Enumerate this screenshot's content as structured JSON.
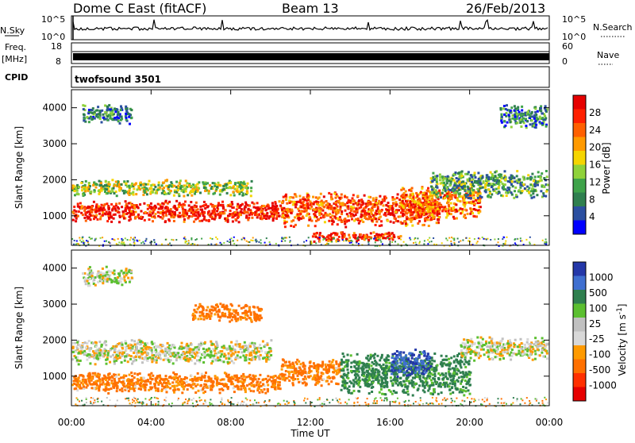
{
  "header": {
    "station": "Dome C East (fitACF)",
    "beam": "Beam 13",
    "date": "26/Feb/2013"
  },
  "top_panels": {
    "nsky_label": "N.Sky",
    "nsky_ticks": [
      "10^5",
      "10^0"
    ],
    "nsearch_label": "N.Search",
    "nsearch_ticks": [
      "10^5",
      "10^0"
    ],
    "freq_label_line1": "Freq.",
    "freq_label_line2": "[MHz]",
    "freq_ticks": [
      "18",
      "8"
    ],
    "nave_label": "Nave",
    "nave_ticks": [
      "60",
      "0"
    ],
    "cpid_label": "CPID",
    "cpid_value": "twofsound 3501"
  },
  "colors": {
    "power_scale": [
      "#0000ff",
      "#2b4fa0",
      "#2f7f4f",
      "#3fa34a",
      "#8fd23a",
      "#f5d500",
      "#ff9a00",
      "#ff6000",
      "#ff2000",
      "#e60000"
    ],
    "velocity_scale": [
      "#2437a8",
      "#3f6fd0",
      "#2f7f4f",
      "#5bbf30",
      "#c0c0c0",
      "#d8d8d8",
      "#ff9a00",
      "#ff7000",
      "#ff3000",
      "#e60000"
    ]
  },
  "chart_data": [
    {
      "type": "heatmap",
      "name": "power",
      "ylabel": "Slant Range [km]",
      "y_ticks": [
        "1000",
        "2000",
        "3000",
        "4000"
      ],
      "ylim": [
        180,
        4500
      ],
      "colorbar_label": "Power [dB]",
      "colorbar_ticks": [
        "4",
        "8",
        "12",
        "16",
        "20",
        "24",
        "28"
      ],
      "colorbar_range": [
        0,
        30
      ],
      "bands": [
        {
          "t_start": 0.0,
          "t_end": 10.5,
          "range_center": 1150,
          "range_width": 450,
          "value": 27
        },
        {
          "t_start": 0.0,
          "t_end": 9.0,
          "range_center": 1800,
          "range_width": 350,
          "value": 14
        },
        {
          "t_start": 10.5,
          "t_end": 18.5,
          "range_center": 1200,
          "range_width": 700,
          "value": 24
        },
        {
          "t_start": 12.0,
          "t_end": 16.5,
          "range_center": 450,
          "range_width": 200,
          "value": 25
        },
        {
          "t_start": 16.5,
          "t_end": 20.5,
          "range_center": 1400,
          "range_width": 700,
          "value": 22
        },
        {
          "t_start": 18.0,
          "t_end": 24.0,
          "range_center": 1900,
          "range_width": 600,
          "value": 10
        },
        {
          "t_start": 0.5,
          "t_end": 3.0,
          "range_center": 3850,
          "range_width": 400,
          "value": 8
        },
        {
          "t_start": 21.5,
          "t_end": 24.0,
          "range_center": 3800,
          "range_width": 500,
          "value": 7
        }
      ]
    },
    {
      "type": "heatmap",
      "name": "velocity",
      "ylabel": "Slant Range [km]",
      "y_ticks": [
        "1000",
        "2000",
        "3000",
        "4000"
      ],
      "ylim": [
        180,
        4500
      ],
      "xlabel": "Time UT",
      "x_ticks": [
        "00:00",
        "04:00",
        "08:00",
        "12:00",
        "16:00",
        "20:00",
        "00:00"
      ],
      "xlim": [
        0,
        24
      ],
      "colorbar_label": "Velocity [m s^-1]",
      "colorbar_ticks": [
        "1000",
        "500",
        "100",
        "25",
        "-25",
        "-100",
        "-500",
        "-1000"
      ],
      "bands": [
        {
          "t_start": 0.0,
          "t_end": 10.5,
          "range_center": 850,
          "range_width": 450,
          "value": -150
        },
        {
          "t_start": 0.0,
          "t_end": 10.0,
          "range_center": 1700,
          "range_width": 500,
          "value": 0
        },
        {
          "t_start": 10.5,
          "t_end": 13.5,
          "range_center": 1150,
          "range_width": 600,
          "value": -150
        },
        {
          "t_start": 13.5,
          "t_end": 20.0,
          "range_center": 1100,
          "range_width": 900,
          "value": 200
        },
        {
          "t_start": 16.0,
          "t_end": 18.0,
          "range_center": 1400,
          "range_width": 600,
          "value": 900
        },
        {
          "t_start": 19.5,
          "t_end": 24.0,
          "range_center": 1800,
          "range_width": 500,
          "value": 0
        },
        {
          "t_start": 0.5,
          "t_end": 3.0,
          "range_center": 3800,
          "range_width": 400,
          "value": 10
        },
        {
          "t_start": 6.0,
          "t_end": 9.5,
          "range_center": 2800,
          "range_width": 400,
          "value": -200
        }
      ]
    }
  ]
}
